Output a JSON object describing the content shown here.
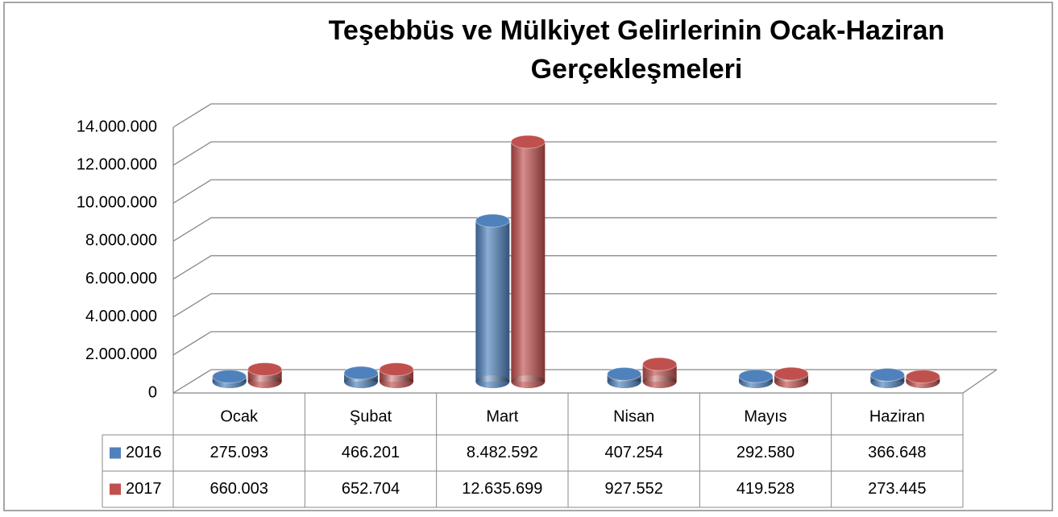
{
  "chart_data": {
    "type": "bar3d",
    "title": "Teşebbüs ve Mülkiyet Gelirlerinin Ocak-Haziran Gerçekleşmeleri",
    "categories": [
      "Ocak",
      "Şubat",
      "Mart",
      "Nisan",
      "Mayıs",
      "Haziran"
    ],
    "series": [
      {
        "name": "2016",
        "color": "#4f81bd",
        "values": [
          275093,
          466201,
          8482592,
          407254,
          292580,
          366648
        ],
        "value_labels": [
          "275.093",
          "466.201",
          "8.482.592",
          "407.254",
          "292.580",
          "366.648"
        ]
      },
      {
        "name": "2017",
        "color": "#c0504d",
        "values": [
          660003,
          652704,
          12635699,
          927552,
          419528,
          273445
        ],
        "value_labels": [
          "660.003",
          "652.704",
          "12.635.699",
          "927.552",
          "419.528",
          "273.445"
        ]
      }
    ],
    "ylim": [
      0,
      14000000
    ],
    "yticks": [
      0,
      {
        "value": 2000000,
        "label": "2.000.000"
      },
      {
        "value": 4000000,
        "label": "4.000.000"
      },
      {
        "value": 6000000,
        "label": "6.000.000"
      },
      {
        "value": 8000000,
        "label": "8.000.000"
      },
      {
        "value": 10000000,
        "label": "10.000.000"
      },
      {
        "value": 12000000,
        "label": "12.000.000"
      },
      {
        "value": 14000000,
        "label": "14.000.000"
      }
    ],
    "grid": true,
    "data_table": true
  }
}
